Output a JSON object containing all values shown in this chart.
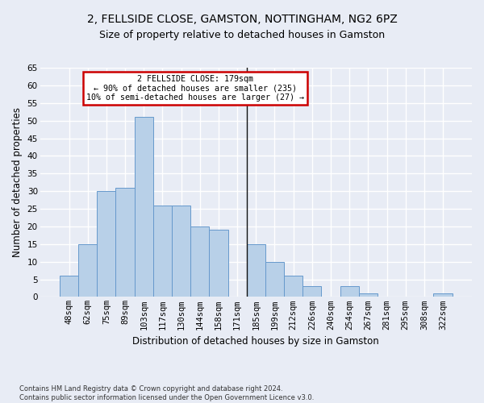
{
  "title_line1": "2, FELLSIDE CLOSE, GAMSTON, NOTTINGHAM, NG2 6PZ",
  "title_line2": "Size of property relative to detached houses in Gamston",
  "xlabel": "Distribution of detached houses by size in Gamston",
  "ylabel": "Number of detached properties",
  "bar_labels": [
    "48sqm",
    "62sqm",
    "75sqm",
    "89sqm",
    "103sqm",
    "117sqm",
    "130sqm",
    "144sqm",
    "158sqm",
    "171sqm",
    "185sqm",
    "199sqm",
    "212sqm",
    "226sqm",
    "240sqm",
    "254sqm",
    "267sqm",
    "281sqm",
    "295sqm",
    "308sqm",
    "322sqm"
  ],
  "bar_values": [
    6,
    15,
    30,
    31,
    51,
    26,
    26,
    20,
    19,
    0,
    15,
    10,
    6,
    3,
    0,
    3,
    1,
    0,
    0,
    0,
    1
  ],
  "bar_color": "#b8d0e8",
  "bar_edge_color": "#6699cc",
  "annotation_text": "2 FELLSIDE CLOSE: 179sqm\n← 90% of detached houses are smaller (235)\n10% of semi-detached houses are larger (27) →",
  "annotation_box_color": "#ffffff",
  "annotation_box_edge": "#cc0000",
  "vline_x": 9.5,
  "vline_color": "#111111",
  "ylim": [
    0,
    65
  ],
  "yticks": [
    0,
    5,
    10,
    15,
    20,
    25,
    30,
    35,
    40,
    45,
    50,
    55,
    60,
    65
  ],
  "footnote": "Contains HM Land Registry data © Crown copyright and database right 2024.\nContains public sector information licensed under the Open Government Licence v3.0.",
  "bg_color": "#e8ecf5",
  "plot_bg_color": "#e8ecf5",
  "grid_color": "#ffffff",
  "title_fontsize": 10,
  "subtitle_fontsize": 9,
  "axis_label_fontsize": 8.5,
  "tick_fontsize": 7.5,
  "footnote_fontsize": 6.0
}
